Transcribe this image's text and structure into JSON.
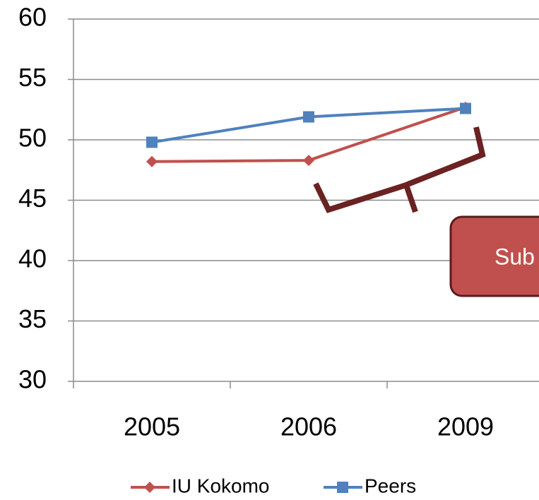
{
  "chart_data": {
    "type": "line",
    "categories": [
      "2005",
      "2006",
      "2009"
    ],
    "series": [
      {
        "name": "IU Kokomo",
        "color": "#c0504d",
        "marker": "diamond",
        "values": [
          48.2,
          48.3,
          52.7
        ]
      },
      {
        "name": "Peers",
        "color": "#4f81bd",
        "marker": "square",
        "values": [
          49.8,
          51.9,
          52.6
        ]
      }
    ],
    "ylim": [
      30,
      60
    ],
    "yticks": [
      30,
      35,
      40,
      45,
      50,
      55,
      60
    ],
    "grid": true,
    "legend": "bottom",
    "annotation": "Sub"
  }
}
